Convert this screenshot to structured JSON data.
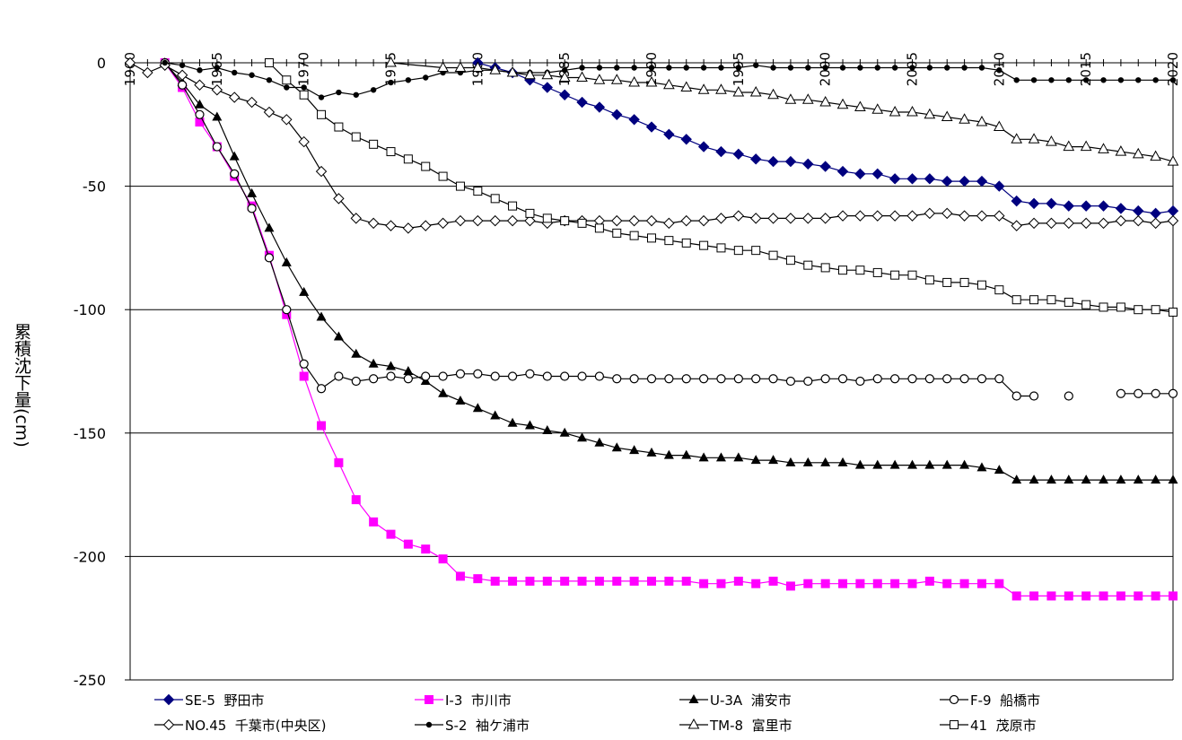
{
  "chart_data": {
    "type": "line",
    "title": "",
    "xlabel": "",
    "ylabel": "累積沈下量(cm)",
    "xlim": [
      1960,
      2020
    ],
    "ylim": [
      -250,
      0
    ],
    "x_ticks": [
      "1960",
      "1965",
      "1970",
      "1975",
      "1980",
      "1985",
      "1990",
      "1995",
      "2000",
      "2005",
      "2010",
      "2015",
      "2020"
    ],
    "y_ticks": [
      "0",
      "-50",
      "-100",
      "-150",
      "-200",
      "-250"
    ],
    "grid": "horizontal",
    "legend_position": "bottom",
    "series": [
      {
        "name": "SE-5  野田市",
        "marker": "diamond-filled",
        "color": "#00007f",
        "x": [
          1980,
          1981,
          1982,
          1983,
          1984,
          1985,
          1986,
          1987,
          1988,
          1989,
          1990,
          1991,
          1992,
          1993,
          1994,
          1995,
          1996,
          1997,
          1998,
          1999,
          2000,
          2001,
          2002,
          2003,
          2004,
          2005,
          2006,
          2007,
          2008,
          2009,
          2010,
          2011,
          2012,
          2013,
          2014,
          2015,
          2016,
          2017,
          2018,
          2019,
          2020
        ],
        "y": [
          0,
          -2,
          -4,
          -7,
          -10,
          -13,
          -16,
          -18,
          -21,
          -23,
          -26,
          -29,
          -31,
          -34,
          -36,
          -37,
          -39,
          -40,
          -40,
          -41,
          -42,
          -44,
          -45,
          -45,
          -47,
          -47,
          -47,
          -48,
          -48,
          -48,
          -50,
          -56,
          -57,
          -57,
          -58,
          -58,
          -58,
          -59,
          -60,
          -61,
          -60
        ]
      },
      {
        "name": "I-3  市川市",
        "marker": "square-filled",
        "color": "#ff00ff",
        "x": [
          1962,
          1963,
          1964,
          1965,
          1966,
          1967,
          1968,
          1969,
          1970,
          1971,
          1972,
          1973,
          1974,
          1975,
          1976,
          1977,
          1978,
          1979,
          1980,
          1981,
          1982,
          1983,
          1984,
          1985,
          1986,
          1987,
          1988,
          1989,
          1990,
          1991,
          1992,
          1993,
          1994,
          1995,
          1996,
          1997,
          1998,
          1999,
          2000,
          2001,
          2002,
          2003,
          2004,
          2005,
          2006,
          2007,
          2008,
          2009,
          2010,
          2011,
          2012,
          2013,
          2014,
          2015,
          2016,
          2017,
          2018,
          2019,
          2020
        ],
        "y": [
          0,
          -10,
          -24,
          -34,
          -46,
          -58,
          -78,
          -102,
          -127,
          -147,
          -162,
          -177,
          -186,
          -191,
          -195,
          -197,
          -201,
          -208,
          -209,
          -210,
          -210,
          -210,
          -210,
          -210,
          -210,
          -210,
          -210,
          -210,
          -210,
          -210,
          -210,
          -211,
          -211,
          -210,
          -211,
          -210,
          -212,
          -211,
          -211,
          -211,
          -211,
          -211,
          -211,
          -211,
          -210,
          -211,
          -211,
          -211,
          -211,
          -216,
          -216,
          -216,
          -216,
          -216,
          -216,
          -216,
          -216,
          -216,
          -216
        ]
      },
      {
        "name": "U-3A  浦安市",
        "marker": "triangle-filled",
        "color": "#000000",
        "x": [
          1962,
          1963,
          1964,
          1965,
          1966,
          1967,
          1968,
          1969,
          1970,
          1971,
          1972,
          1973,
          1974,
          1975,
          1976,
          1977,
          1978,
          1979,
          1980,
          1981,
          1982,
          1983,
          1984,
          1985,
          1986,
          1987,
          1988,
          1989,
          1990,
          1991,
          1992,
          1993,
          1994,
          1995,
          1996,
          1997,
          1998,
          1999,
          2000,
          2001,
          2002,
          2003,
          2004,
          2005,
          2006,
          2007,
          2008,
          2009,
          2010,
          2011,
          2012,
          2013,
          2014,
          2015,
          2016,
          2017,
          2018,
          2019,
          2020
        ],
        "y": [
          0,
          -8,
          -17,
          -22,
          -38,
          -53,
          -67,
          -81,
          -93,
          -103,
          -111,
          -118,
          -122,
          -123,
          -125,
          -129,
          -134,
          -137,
          -140,
          -143,
          -146,
          -147,
          -149,
          -150,
          -152,
          -154,
          -156,
          -157,
          -158,
          -159,
          -159,
          -160,
          -160,
          -160,
          -161,
          -161,
          -162,
          -162,
          -162,
          -162,
          -163,
          -163,
          -163,
          -163,
          -163,
          -163,
          -163,
          -164,
          -165,
          -169,
          -169,
          -169,
          -169,
          -169,
          -169,
          -169,
          -169,
          -169,
          -169
        ]
      },
      {
        "name": "F-9  船橋市",
        "marker": "circle-open",
        "color": "#000000",
        "x": [
          1962,
          1963,
          1964,
          1965,
          1966,
          1967,
          1968,
          1969,
          1970,
          1971,
          1972,
          1973,
          1974,
          1975,
          1976,
          1977,
          1978,
          1979,
          1980,
          1981,
          1982,
          1983,
          1984,
          1985,
          1986,
          1987,
          1988,
          1989,
          1990,
          1991,
          1992,
          1993,
          1994,
          1995,
          1996,
          1997,
          1998,
          1999,
          2000,
          2001,
          2002,
          2003,
          2004,
          2005,
          2006,
          2007,
          2008,
          2009,
          2010,
          2011,
          2012,
          2013,
          2014,
          2015,
          2016,
          2017,
          2018,
          2019,
          2020
        ],
        "y": [
          0,
          -9,
          -21,
          -34,
          -45,
          -59,
          -79,
          -100,
          -122,
          -132,
          -127,
          -129,
          -128,
          -127,
          -128,
          -127,
          -127,
          -126,
          -126,
          -127,
          -127,
          -126,
          -127,
          -127,
          -127,
          -127,
          -128,
          -128,
          -128,
          -128,
          -128,
          -128,
          -128,
          -128,
          -128,
          -128,
          -129,
          -129,
          -128,
          -128,
          -129,
          -128,
          -128,
          -128,
          -128,
          -128,
          -128,
          -128,
          -128,
          -135,
          -135,
          null,
          -135,
          null,
          null,
          -134,
          -134,
          -134,
          -134
        ]
      },
      {
        "name": "NO.45  千葉市(中央区)",
        "marker": "diamond-open",
        "color": "#000000",
        "x": [
          1960,
          1961,
          1962,
          1963,
          1964,
          1965,
          1966,
          1967,
          1968,
          1969,
          1970,
          1971,
          1972,
          1973,
          1974,
          1975,
          1976,
          1977,
          1978,
          1979,
          1980,
          1981,
          1982,
          1983,
          1984,
          1985,
          1986,
          1987,
          1988,
          1989,
          1990,
          1991,
          1992,
          1993,
          1994,
          1995,
          1996,
          1997,
          1998,
          1999,
          2000,
          2001,
          2002,
          2003,
          2004,
          2005,
          2006,
          2007,
          2008,
          2009,
          2010,
          2011,
          2012,
          2013,
          2014,
          2015,
          2016,
          2017,
          2018,
          2019,
          2020
        ],
        "y": [
          0,
          -4,
          -1,
          -5,
          -9,
          -11,
          -14,
          -16,
          -20,
          -23,
          -32,
          -44,
          -55,
          -63,
          -65,
          -66,
          -67,
          -66,
          -65,
          -64,
          -64,
          -64,
          -64,
          -64,
          -65,
          -64,
          -64,
          -64,
          -64,
          -64,
          -64,
          -65,
          -64,
          -64,
          -63,
          -62,
          -63,
          -63,
          -63,
          -63,
          -63,
          -62,
          -62,
          -62,
          -62,
          -62,
          -61,
          -61,
          -62,
          -62,
          -62,
          -66,
          -65,
          -65,
          -65,
          -65,
          -65,
          -64,
          -64,
          -65,
          -64
        ]
      },
      {
        "name": "S-2  袖ケ浦市",
        "marker": "dot-filled",
        "color": "#000000",
        "x": [
          1962,
          1963,
          1964,
          1965,
          1966,
          1967,
          1968,
          1969,
          1970,
          1971,
          1972,
          1973,
          1974,
          1975,
          1976,
          1977,
          1978,
          1979,
          1980,
          1981,
          1982,
          1983,
          1984,
          1985,
          1986,
          1987,
          1988,
          1989,
          1990,
          1991,
          1992,
          1993,
          1994,
          1995,
          1996,
          1997,
          1998,
          1999,
          2000,
          2001,
          2002,
          2003,
          2004,
          2005,
          2006,
          2007,
          2008,
          2009,
          2010,
          2011,
          2012,
          2013,
          2014,
          2015,
          2016,
          2017,
          2018,
          2019,
          2020
        ],
        "y": [
          0,
          -1,
          -3,
          -2,
          -4,
          -5,
          -7,
          -10,
          -10,
          -14,
          -12,
          -13,
          -11,
          -8,
          -7,
          -6,
          -4,
          -4,
          -3,
          -3,
          -4,
          -4,
          -4,
          -3,
          -2,
          -2,
          -2,
          -2,
          -2,
          -2,
          -2,
          -2,
          -2,
          -2,
          -1,
          -2,
          -2,
          -2,
          -2,
          -2,
          -2,
          -2,
          -2,
          -2,
          -2,
          -2,
          -2,
          -2,
          -3,
          -7,
          -7,
          -7,
          -7,
          -7,
          -7,
          -7,
          -7,
          -7,
          -7
        ]
      },
      {
        "name": "TM-8  富里市",
        "marker": "triangle-open",
        "color": "#000000",
        "x": [
          1975,
          1978,
          1979,
          1980,
          1981,
          1982,
          1983,
          1984,
          1985,
          1986,
          1987,
          1988,
          1989,
          1990,
          1991,
          1992,
          1993,
          1994,
          1995,
          1996,
          1997,
          1998,
          1999,
          2000,
          2001,
          2002,
          2003,
          2004,
          2005,
          2006,
          2007,
          2008,
          2009,
          2010,
          2011,
          2012,
          2013,
          2014,
          2015,
          2016,
          2017,
          2018,
          2019,
          2020
        ],
        "y": [
          0,
          -2,
          -2,
          -2,
          -3,
          -4,
          -5,
          -5,
          -6,
          -6,
          -7,
          -7,
          -8,
          -8,
          -9,
          -10,
          -11,
          -11,
          -12,
          -12,
          -13,
          -15,
          -15,
          -16,
          -17,
          -18,
          -19,
          -20,
          -20,
          -21,
          -22,
          -23,
          -24,
          -26,
          -31,
          -31,
          -32,
          -34,
          -34,
          -35,
          -36,
          -37,
          -38,
          -40
        ]
      },
      {
        "name": "41  茂原市",
        "marker": "square-open",
        "color": "#000000",
        "x": [
          1968,
          1969,
          1970,
          1971,
          1972,
          1973,
          1974,
          1975,
          1976,
          1977,
          1978,
          1979,
          1980,
          1981,
          1982,
          1983,
          1984,
          1985,
          1986,
          1987,
          1988,
          1989,
          1990,
          1991,
          1992,
          1993,
          1994,
          1995,
          1996,
          1997,
          1998,
          1999,
          2000,
          2001,
          2002,
          2003,
          2004,
          2005,
          2006,
          2007,
          2008,
          2009,
          2010,
          2011,
          2012,
          2013,
          2014,
          2015,
          2016,
          2017,
          2018,
          2019,
          2020
        ],
        "y": [
          0,
          -7,
          -13,
          -21,
          -26,
          -30,
          -33,
          -36,
          -39,
          -42,
          -46,
          -50,
          -52,
          -55,
          -58,
          -61,
          -63,
          -64,
          -65,
          -67,
          -69,
          -70,
          -71,
          -72,
          -73,
          -74,
          -75,
          -76,
          -76,
          -78,
          -80,
          -82,
          -83,
          -84,
          -84,
          -85,
          -86,
          -86,
          -88,
          -89,
          -89,
          -90,
          -92,
          -96,
          -96,
          -96,
          -97,
          -98,
          -99,
          -99,
          -100,
          -100,
          -101
        ]
      }
    ]
  }
}
